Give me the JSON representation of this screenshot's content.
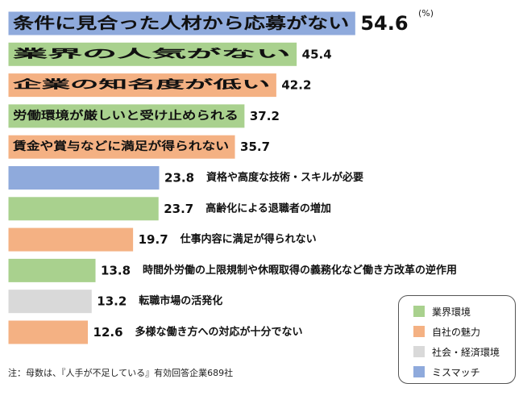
{
  "unit_label": "(%)",
  "note": "注：母数は、『人手が不足している』有効回答企業689社",
  "colors": {
    "業界環境": "#a9d18e",
    "自社の魅力": "#f4b183",
    "社会・経済環境": "#d9d9d9",
    "ミスマッチ": "#8faadc"
  },
  "legend": [
    {
      "label": "業界環境",
      "category": "業界環境"
    },
    {
      "label": "自社の魅力",
      "category": "自社の魅力"
    },
    {
      "label": "社会・経済環境",
      "category": "社会・経済環境"
    },
    {
      "label": "ミスマッチ",
      "category": "ミスマッチ"
    }
  ],
  "chart_data": {
    "type": "bar",
    "orientation": "horizontal",
    "title": "",
    "xlabel": "",
    "ylabel": "",
    "unit": "%",
    "grid": false,
    "legend_position": "bottom-right",
    "categories": [
      "条件に見合った人材から応募がない",
      "業界の人気がない",
      "企業の知名度が低い",
      "労働環境が厳しいと受け止められる",
      "賃金や賞与などに満足が得られない",
      "資格や高度な技術・スキルが必要",
      "高齢化による退職者の増加",
      "仕事内容に満足が得られない",
      "時間外労働の上限規制や休暇取得の義務化など働き方改革の逆作用",
      "転職市場の活発化",
      "多様な働き方への対応が十分でない"
    ],
    "values": [
      54.6,
      45.4,
      42.2,
      37.2,
      35.7,
      23.8,
      23.7,
      19.7,
      13.8,
      13.2,
      12.6
    ],
    "value_labels": [
      "54.6",
      "45.4",
      "42.2",
      "37.2",
      "35.7",
      "23.8",
      "23.7",
      "19.7",
      "13.8",
      "13.2",
      "12.6"
    ],
    "groups": [
      "ミスマッチ",
      "業界環境",
      "自社の魅力",
      "業界環境",
      "自社の魅力",
      "ミスマッチ",
      "業界環境",
      "自社の魅力",
      "業界環境",
      "社会・経済環境",
      "自社の魅力"
    ],
    "label_inside_bar": [
      true,
      true,
      true,
      true,
      true,
      false,
      false,
      false,
      false,
      false,
      false
    ]
  }
}
